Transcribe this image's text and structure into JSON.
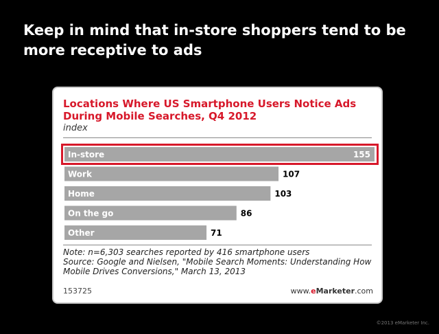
{
  "slide": {
    "title": "Keep in mind that in-store shoppers tend to be more receptive to ads",
    "copyright": "©2013 eMarketer Inc."
  },
  "chart_data": {
    "type": "bar",
    "orientation": "horizontal",
    "title": "Locations Where US Smartphone Users Notice Ads During Mobile Searches, Q4 2012",
    "subtitle": "index",
    "categories": [
      "In-store",
      "Work",
      "Home",
      "On the go",
      "Other"
    ],
    "values": [
      155,
      107,
      103,
      86,
      71
    ],
    "highlighted_category": "In-store",
    "xlim": [
      0,
      155
    ],
    "grid": false,
    "legend": "none",
    "bar_color": "#a6a6a6",
    "label_color": "#ffffff",
    "highlight_color": "#d7182a",
    "note": "Note: n=6,303 searches reported by 416 smartphone users",
    "source": "Source: Google and Nielsen, \"Mobile Search Moments: Understanding How Mobile Drives Conversions,\" March 13, 2013",
    "chart_id": "153725",
    "brand": {
      "prefix": "www.",
      "accent": "e",
      "name": "Marketer",
      "suffix": ".com"
    }
  }
}
